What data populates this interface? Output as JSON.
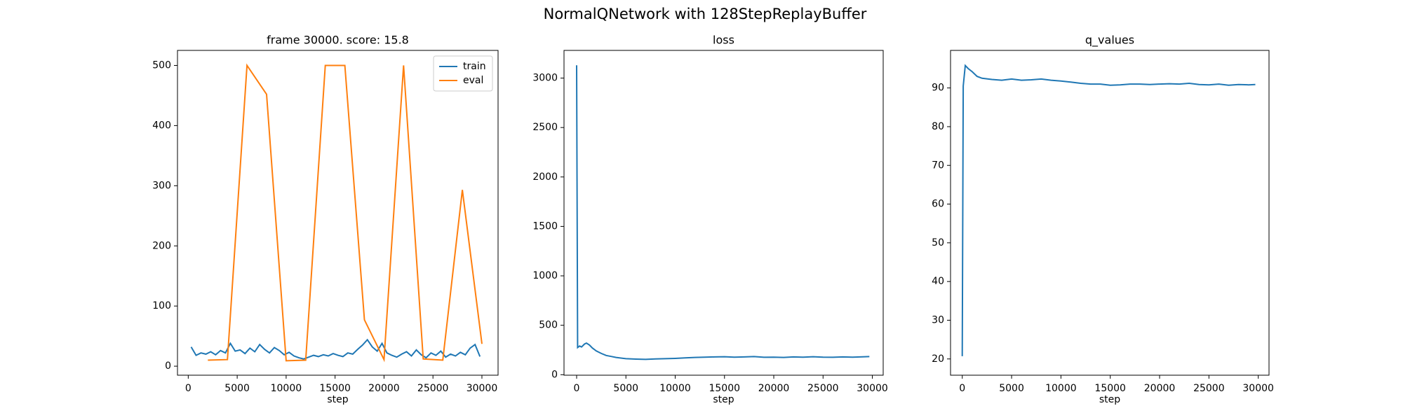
{
  "title": "NormalQNetwork with 128StepReplayBuffer",
  "chart_data": [
    {
      "type": "line",
      "title": "frame 30000. score: 15.8",
      "xlabel": "step",
      "xlim": [
        -1100,
        31650
      ],
      "xticks": [
        0,
        5000,
        10000,
        15000,
        20000,
        25000,
        30000
      ],
      "ylim": [
        -15,
        525
      ],
      "yticks": [
        0,
        100,
        200,
        300,
        400,
        500
      ],
      "legend": "upper right",
      "series": [
        {
          "name": "train",
          "color": "#1f77b4",
          "x": [
            300,
            800,
            1300,
            1800,
            2300,
            2800,
            3300,
            3800,
            4300,
            4800,
            5300,
            5800,
            6300,
            6800,
            7300,
            7800,
            8300,
            8800,
            9300,
            9800,
            10300,
            10800,
            11300,
            11800,
            12300,
            12800,
            13300,
            13800,
            14300,
            14800,
            15300,
            15800,
            16300,
            16800,
            17300,
            17800,
            18300,
            18800,
            19300,
            19800,
            20300,
            20800,
            21300,
            21800,
            22300,
            22800,
            23300,
            23800,
            24300,
            24800,
            25300,
            25800,
            26300,
            26800,
            27300,
            27800,
            28300,
            28800,
            29300,
            29800
          ],
          "values": [
            32,
            18,
            22,
            20,
            24,
            19,
            26,
            22,
            38,
            25,
            27,
            21,
            30,
            24,
            36,
            28,
            22,
            31,
            26,
            19,
            23,
            17,
            14,
            12,
            15,
            18,
            16,
            19,
            17,
            21,
            18,
            16,
            22,
            20,
            28,
            35,
            44,
            32,
            25,
            38,
            22,
            18,
            15,
            20,
            24,
            17,
            27,
            19,
            14,
            22,
            18,
            25,
            15,
            20,
            17,
            23,
            19,
            30,
            36,
            16
          ]
        },
        {
          "name": "eval",
          "color": "#ff7f0e",
          "x": [
            2000,
            4000,
            6000,
            8000,
            10000,
            12000,
            14000,
            16000,
            18000,
            20000,
            22000,
            24000,
            26000,
            28000,
            30000
          ],
          "values": [
            10,
            11,
            500,
            452,
            9,
            10,
            500,
            500,
            77,
            11,
            500,
            12,
            10,
            293,
            37
          ]
        }
      ]
    },
    {
      "type": "line",
      "title": "loss",
      "xlabel": "step",
      "xlim": [
        -1280,
        31100
      ],
      "xticks": [
        0,
        5000,
        10000,
        15000,
        20000,
        25000,
        30000
      ],
      "ylim": [
        -5,
        3280
      ],
      "yticks": [
        0,
        500,
        1000,
        1500,
        2000,
        2500,
        3000
      ],
      "series": [
        {
          "color": "#1f77b4",
          "x": [
            0,
            100,
            300,
            500,
            800,
            1000,
            1300,
            1600,
            2000,
            2500,
            3000,
            3500,
            4000,
            5000,
            6000,
            7000,
            8000,
            9000,
            10000,
            11000,
            12000,
            13000,
            14000,
            15000,
            16000,
            17000,
            18000,
            19000,
            20000,
            21000,
            22000,
            23000,
            24000,
            25000,
            26000,
            27000,
            28000,
            29000,
            29700
          ],
          "values": [
            3130,
            275,
            290,
            280,
            310,
            320,
            300,
            270,
            240,
            215,
            195,
            185,
            175,
            162,
            158,
            155,
            160,
            162,
            165,
            170,
            175,
            178,
            180,
            182,
            178,
            180,
            183,
            176,
            178,
            175,
            180,
            177,
            182,
            178,
            176,
            180,
            178,
            181,
            183
          ]
        }
      ]
    },
    {
      "type": "line",
      "title": "q_values",
      "xlabel": "step",
      "xlim": [
        -1190,
        31090
      ],
      "xticks": [
        0,
        5000,
        10000,
        15000,
        20000,
        25000,
        30000
      ],
      "ylim": [
        15.8,
        99.7
      ],
      "yticks": [
        20,
        30,
        40,
        50,
        60,
        70,
        80,
        90
      ],
      "series": [
        {
          "color": "#1f77b4",
          "x": [
            0,
            100,
            300,
            600,
            1000,
            1500,
            2000,
            3000,
            4000,
            5000,
            6000,
            7000,
            8000,
            9000,
            10000,
            11000,
            12000,
            13000,
            14000,
            15000,
            16000,
            17000,
            18000,
            19000,
            20000,
            21000,
            22000,
            23000,
            24000,
            25000,
            26000,
            27000,
            28000,
            29000,
            29700
          ],
          "values": [
            20.7,
            90.5,
            95.8,
            95.0,
            94.2,
            93.0,
            92.5,
            92.2,
            92.0,
            92.3,
            92.0,
            92.1,
            92.3,
            92.0,
            91.8,
            91.5,
            91.2,
            91.0,
            91.0,
            90.7,
            90.8,
            91.0,
            91.0,
            90.9,
            91.0,
            91.1,
            91.0,
            91.2,
            90.9,
            90.8,
            91.0,
            90.7,
            90.9,
            90.8,
            90.9
          ]
        }
      ]
    }
  ]
}
